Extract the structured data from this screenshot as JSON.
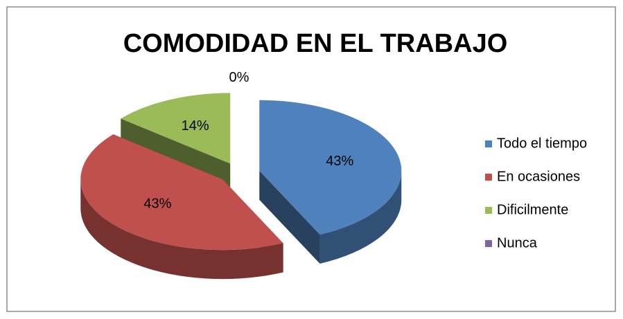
{
  "chart_data": {
    "type": "pie",
    "title": "COMODIDAD EN EL TRABAJO",
    "categories": [
      "Todo el tiempo",
      "En ocasiones",
      "Dificilmente",
      "Nunca"
    ],
    "values": [
      43,
      43,
      14,
      0
    ],
    "value_labels": [
      "43%",
      "43%",
      "14%",
      "0%"
    ],
    "colors": [
      "#4f81bd",
      "#c0504d",
      "#9bbb59",
      "#8064a2"
    ],
    "legend": "right"
  }
}
